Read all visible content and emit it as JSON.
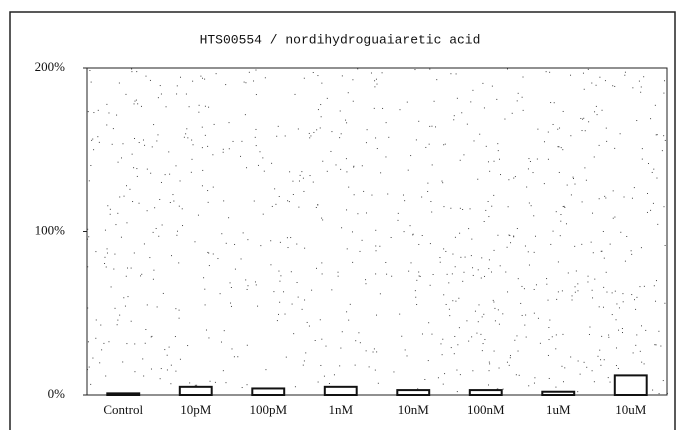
{
  "chart_data": {
    "type": "bar",
    "title": "HTS00554 / nordihydroguaiaretic acid",
    "categories": [
      "Control",
      "10pM",
      "100pM",
      "1nM",
      "10nM",
      "100nM",
      "1uM",
      "10uM"
    ],
    "values": [
      1,
      5,
      4,
      5,
      3,
      3,
      2,
      12
    ],
    "color": "#ffffff",
    "ylim": [
      0,
      200
    ],
    "yticks": [
      {
        "value": 0,
        "label": "0%"
      },
      {
        "value": 100,
        "label": "100%"
      },
      {
        "value": 200,
        "label": "200%"
      }
    ],
    "grid": false
  }
}
